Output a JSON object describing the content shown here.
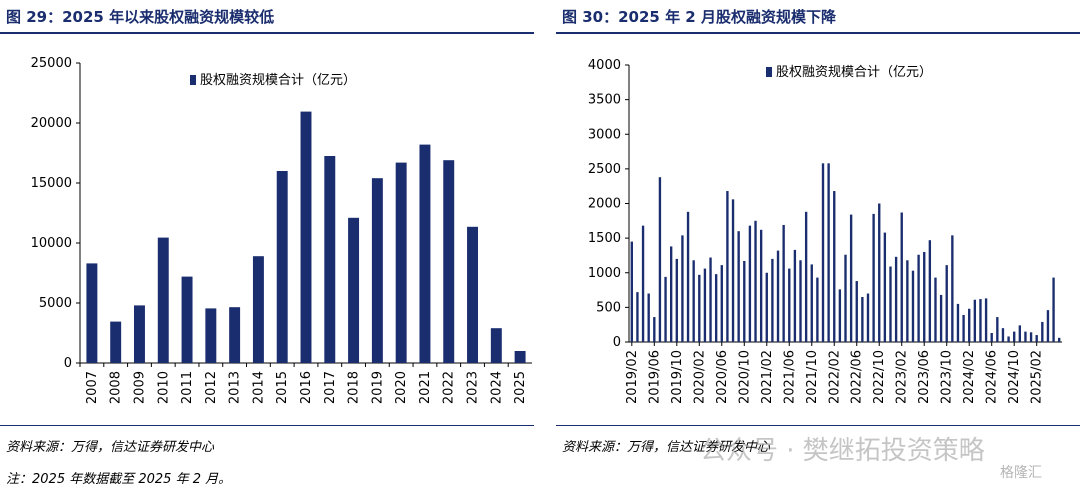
{
  "left": {
    "title": "图 29：2025 年以来股权融资规模较低",
    "source": "资料来源：万得，信达证券研发中心",
    "note": "注：2025 年数据截至 2025 年 2 月。"
  },
  "right": {
    "title": "图 30：2025 年 2 月股权融资规模下降",
    "source": "资料来源：万得，信达证券研发中心"
  },
  "watermark": {
    "text": "公众号 · 樊继拓投资策略",
    "logo": "格隆汇"
  },
  "colors": {
    "bar": "#1a2d6e",
    "title": "#1a2d6e"
  },
  "chart_data": [
    {
      "type": "bar",
      "title": "图 29：2025 年以来股权融资规模较低",
      "legend": "股权融资规模合计（亿元）",
      "legend_position": "top",
      "categories": [
        "2007",
        "2008",
        "2009",
        "2010",
        "2011",
        "2012",
        "2013",
        "2014",
        "2015",
        "2016",
        "2017",
        "2018",
        "2019",
        "2020",
        "2021",
        "2022",
        "2023",
        "2024",
        "2025"
      ],
      "series": [
        {
          "name": "股权融资规模合计（亿元）",
          "values": [
            8300,
            3450,
            4800,
            10450,
            7200,
            4550,
            4650,
            8900,
            16000,
            20950,
            17250,
            12100,
            15400,
            16700,
            18200,
            16900,
            11350,
            2900,
            1000
          ]
        }
      ],
      "yticks": [
        "0",
        "5000",
        "10000",
        "15000",
        "20000",
        "25000"
      ],
      "ylim": [
        0,
        25000
      ],
      "grid": false
    },
    {
      "type": "bar",
      "title": "图 30：2025 年 2 月股权融资规模下降",
      "legend": "股权融资规模合计（亿元）",
      "legend_position": "top",
      "xticks": [
        "2019/02",
        "2019/06",
        "2019/10",
        "2020/02",
        "2020/06",
        "2020/10",
        "2021/02",
        "2021/06",
        "2021/10",
        "2022/02",
        "2022/06",
        "2022/10",
        "2023/02",
        "2023/06",
        "2023/10",
        "2024/02",
        "2024/06",
        "2024/10",
        "2025/02"
      ],
      "series": [
        {
          "name": "股权融资规模合计（亿元）",
          "values": [
            1450,
            720,
            1680,
            700,
            360,
            2380,
            940,
            1380,
            1200,
            1540,
            1880,
            1180,
            970,
            1060,
            1220,
            980,
            1110,
            2180,
            2060,
            1600,
            1170,
            1680,
            1750,
            1620,
            1000,
            1200,
            1320,
            1690,
            1060,
            1330,
            1180,
            1880,
            1120,
            930,
            2580,
            2580,
            2180,
            760,
            1260,
            1840,
            880,
            650,
            700,
            1850,
            2000,
            1580,
            1090,
            1230,
            1870,
            1180,
            1030,
            1260,
            1300,
            1470,
            930,
            680,
            1110,
            1540,
            550,
            390,
            480,
            610,
            620,
            630,
            130,
            360,
            200,
            80,
            150,
            240,
            150,
            140,
            100,
            290,
            460,
            930,
            60
          ]
        }
      ],
      "yticks": [
        "0",
        "500",
        "1000",
        "1500",
        "2000",
        "2500",
        "3000",
        "3500",
        "4000"
      ],
      "ylim": [
        0,
        4000
      ],
      "grid": false
    }
  ]
}
